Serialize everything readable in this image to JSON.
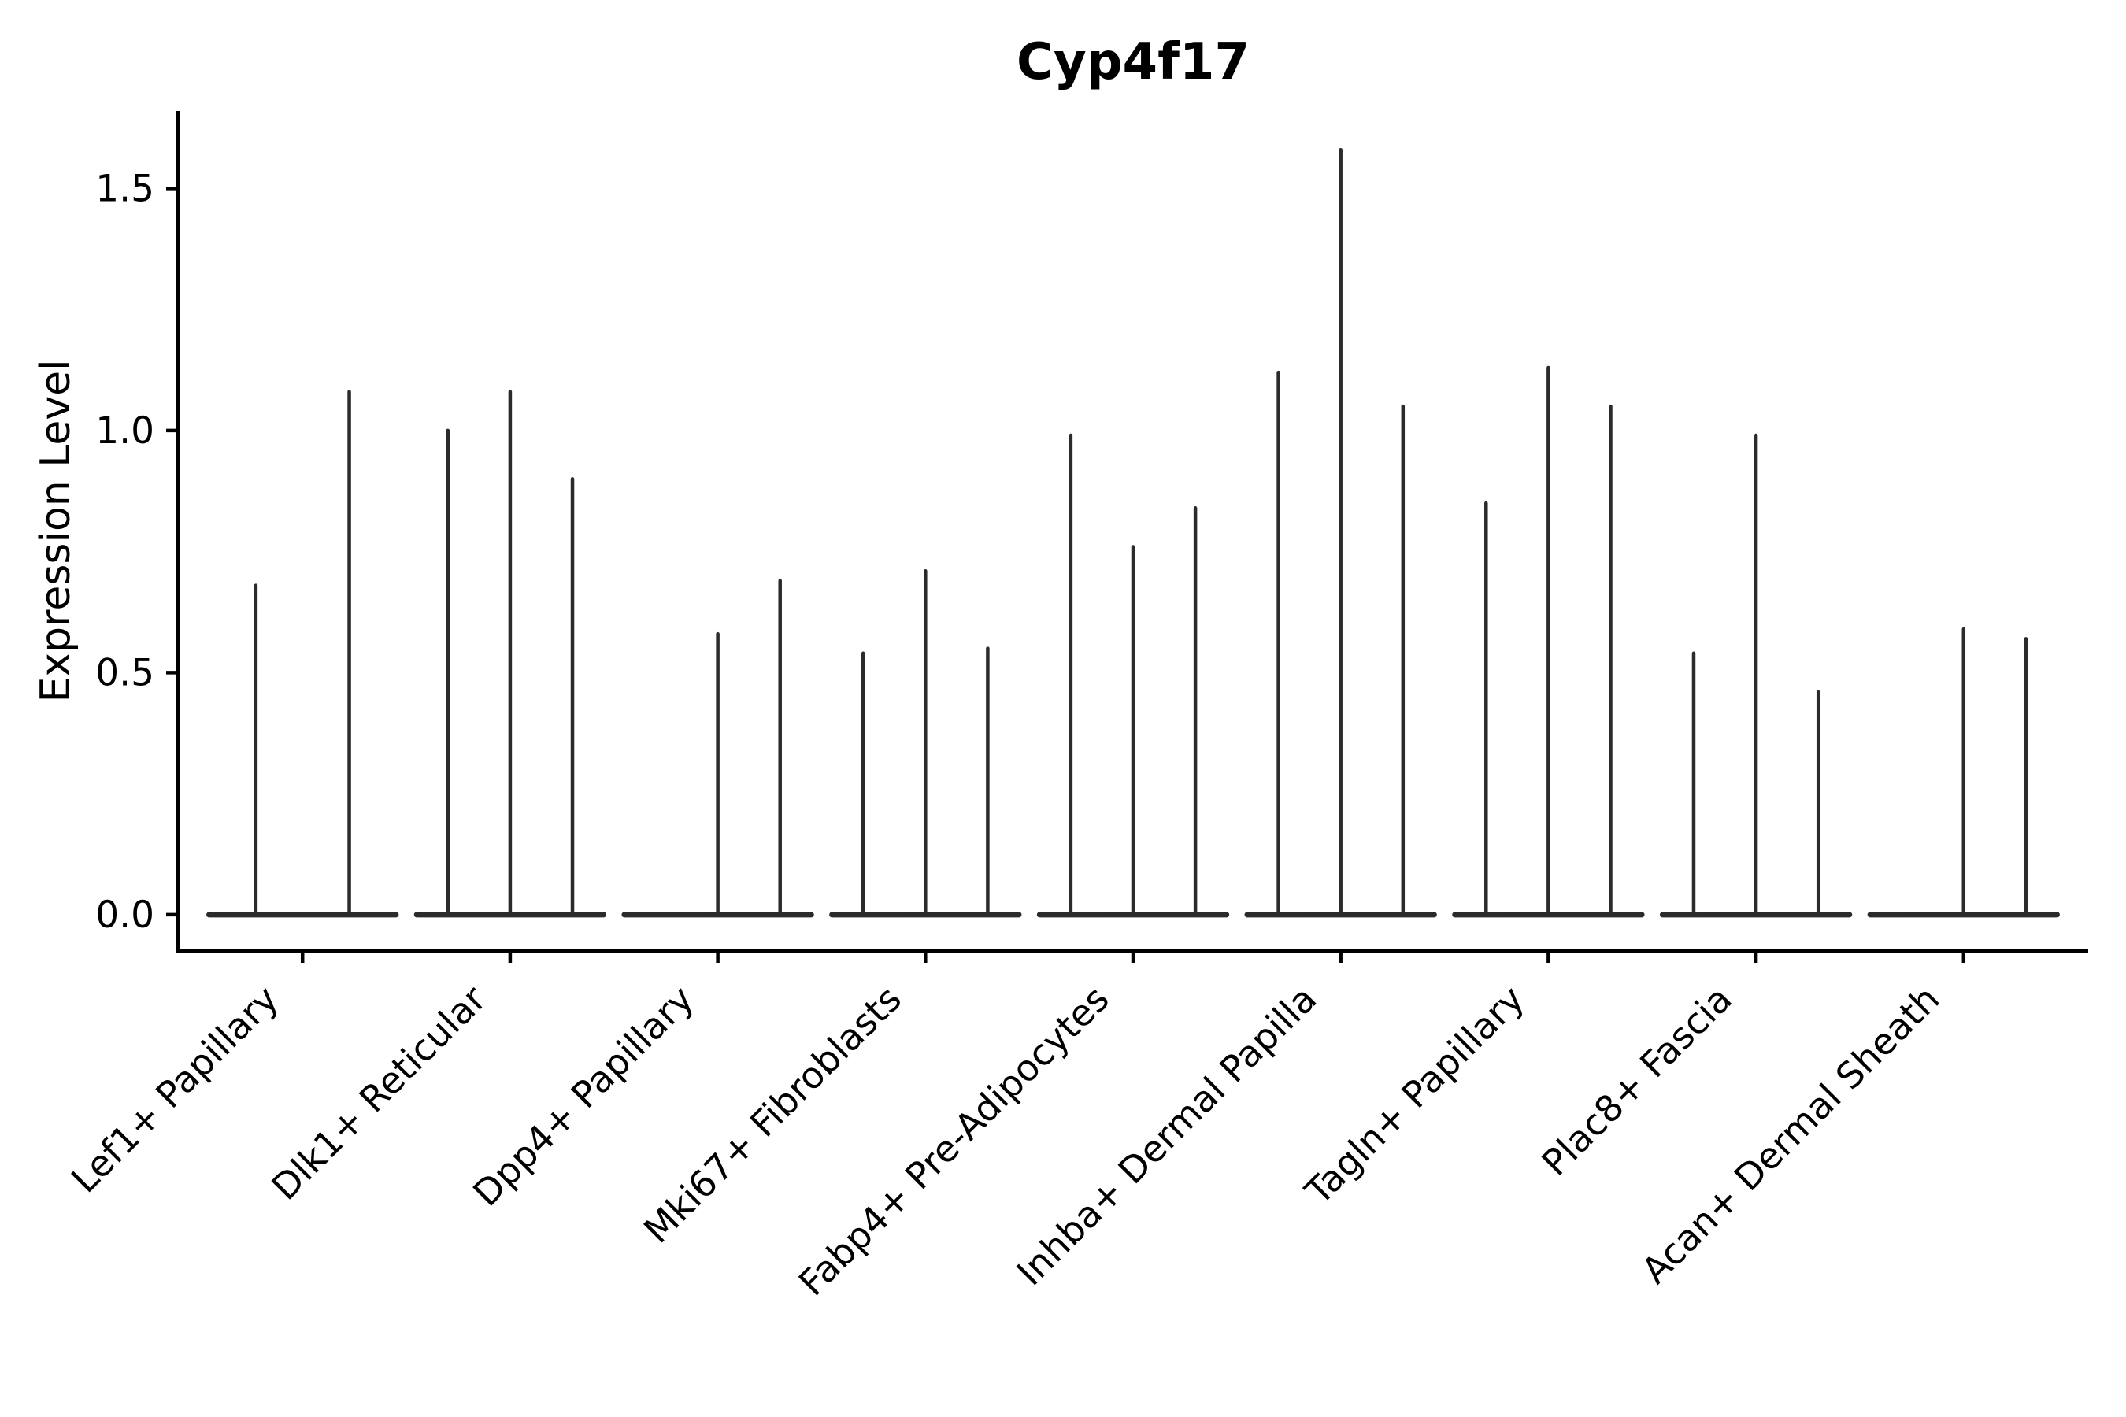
{
  "figure": {
    "title": "Cyp4f17",
    "y_axis_label": "Expression Level"
  },
  "chart_data": {
    "type": "violin",
    "title": "Cyp4f17",
    "xlabel": "",
    "ylabel": "Expression Level",
    "categories": [
      "Lef1+ Papillary",
      "Dlk1+ Reticular",
      "Dpp4+ Papillary",
      "Mki67+ Fibroblasts",
      "Fabp4+ Pre-Adipocytes",
      "Inhba+ Dermal Papilla",
      "Tagln+ Papillary",
      "Plac8+ Fascia",
      "Acan+ Dermal Sheath"
    ],
    "series": [
      {
        "category": "Lef1+ Papillary",
        "violin_max_values": [
          0.68,
          1.08
        ]
      },
      {
        "category": "Dlk1+ Reticular",
        "violin_max_values": [
          1.0,
          1.08,
          0.9
        ]
      },
      {
        "category": "Dpp4+ Papillary",
        "violin_max_values": [
          0.0,
          0.58,
          0.69
        ]
      },
      {
        "category": "Mki67+ Fibroblasts",
        "violin_max_values": [
          0.54,
          0.71,
          0.55
        ]
      },
      {
        "category": "Fabp4+ Pre-Adipocytes",
        "violin_max_values": [
          0.99,
          0.76,
          0.84
        ]
      },
      {
        "category": "Inhba+ Dermal Papilla",
        "violin_max_values": [
          1.12,
          1.58,
          1.05
        ]
      },
      {
        "category": "Tagln+ Papillary",
        "violin_max_values": [
          0.85,
          1.13,
          1.05
        ]
      },
      {
        "category": "Plac8+ Fascia",
        "violin_max_values": [
          0.54,
          0.99,
          0.46
        ]
      },
      {
        "category": "Acan+ Dermal Sheath",
        "violin_max_values": [
          0.0,
          0.59,
          0.57
        ]
      }
    ],
    "yticks": [
      0.0,
      0.5,
      1.0,
      1.5
    ],
    "ytick_labels": [
      "0.0",
      "0.5",
      "1.0",
      "1.5"
    ],
    "ylim": [
      -0.075,
      1.66
    ],
    "x_label_rotation_deg": 45,
    "group_width_fraction": 0.9,
    "grid": false,
    "legend": "none",
    "colors": {
      "violin_stroke": "#2b2b2b",
      "axis": "#000000",
      "text": "#000000",
      "background": "#ffffff"
    }
  }
}
